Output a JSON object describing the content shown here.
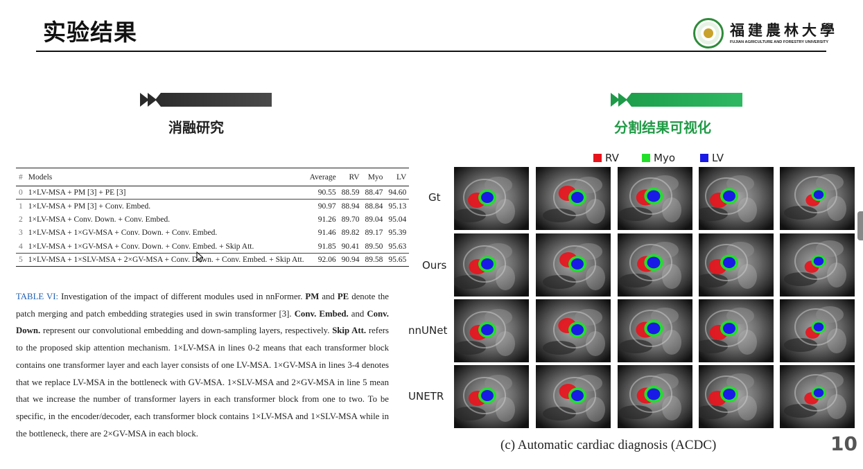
{
  "slide": {
    "title": "实验结果",
    "page_number": "10"
  },
  "logo": {
    "name_cn": "福建農林大學",
    "name_en": "FUJIAN AGRICULTURE AND FORESTRY UNIVERSITY"
  },
  "left_section": {
    "heading": "消融研究",
    "table": {
      "headers": [
        "#",
        "Models",
        "Average",
        "RV",
        "Myo",
        "LV"
      ],
      "rows": [
        {
          "idx": "0",
          "model": "1×LV-MSA + PM [3] + PE [3]",
          "average": "90.55",
          "rv": "88.59",
          "myo": "88.47",
          "lv": "94.60"
        },
        {
          "idx": "1",
          "model": "1×LV-MSA + PM [3] + Conv. Embed.",
          "average": "90.97",
          "rv": "88.94",
          "myo": "88.84",
          "lv": "95.13"
        },
        {
          "idx": "2",
          "model": "1×LV-MSA + Conv. Down. + Conv. Embed.",
          "average": "91.26",
          "rv": "89.70",
          "myo": "89.04",
          "lv": "95.04"
        },
        {
          "idx": "3",
          "model": "1×LV-MSA + 1×GV-MSA + Conv. Down. + Conv. Embed.",
          "average": "91.46",
          "rv": "89.82",
          "myo": "89.17",
          "lv": "95.39"
        },
        {
          "idx": "4",
          "model": "1×LV-MSA + 1×GV-MSA + Conv. Down. + Conv. Embed. + Skip Att.",
          "average": "91.85",
          "rv": "90.41",
          "myo": "89.50",
          "lv": "95.63"
        },
        {
          "idx": "5",
          "model": "1×LV-MSA + 1×SLV-MSA + 2×GV-MSA + Conv. Down. + Conv. Embed. + Skip Att.",
          "average": "92.06",
          "rv": "90.94",
          "myo": "89.58",
          "lv": "95.65"
        }
      ]
    },
    "caption": {
      "label": "TABLE VI:",
      "p1": " Investigation of the impact of different modules used in nnFormer. ",
      "pm": "PM",
      "p2": " and ",
      "pe": "PE",
      "p3": " denote the patch merging and patch embedding strategies used in swin transformer [3]. ",
      "conv_embed": "Conv. Embed.",
      "p4": " and ",
      "conv_down": "Conv. Down.",
      "p5": " represent our convolutional embedding and down-sampling layers, respectively. ",
      "skip_att": "Skip Att.",
      "p6": " refers to the proposed skip attention mechanism. 1×LV-MSA in lines 0-2 means that each transformer block contains one transformer layer and each layer consists of one LV-MSA. 1×GV-MSA in lines 3-4 denotes that we replace LV-MSA in the bottleneck with GV-MSA. 1×SLV-MSA and 2×GV-MSA in line 5 mean that we increase the number of transformer layers in each transformer block from one to two. To be specific, in the encoder/decoder, each transformer block contains 1×LV-MSA and 1×SLV-MSA while in the bottleneck, there are 2×GV-MSA in each block."
    }
  },
  "right_section": {
    "heading": "分割结果可视化",
    "legend": [
      {
        "label": "RV",
        "color": "#e8141c"
      },
      {
        "label": "Myo",
        "color": "#22e02a"
      },
      {
        "label": "LV",
        "color": "#1a1ae6"
      }
    ],
    "row_labels": [
      "Gt",
      "Ours",
      "nnUNet",
      "UNETR"
    ],
    "figure_caption": "(c) Automatic cardiac diagnosis (ACDC)"
  },
  "colors": {
    "green_accent": "#1f9a45",
    "dark_banner": "#333333",
    "caption_label": "#1f5fb0"
  }
}
